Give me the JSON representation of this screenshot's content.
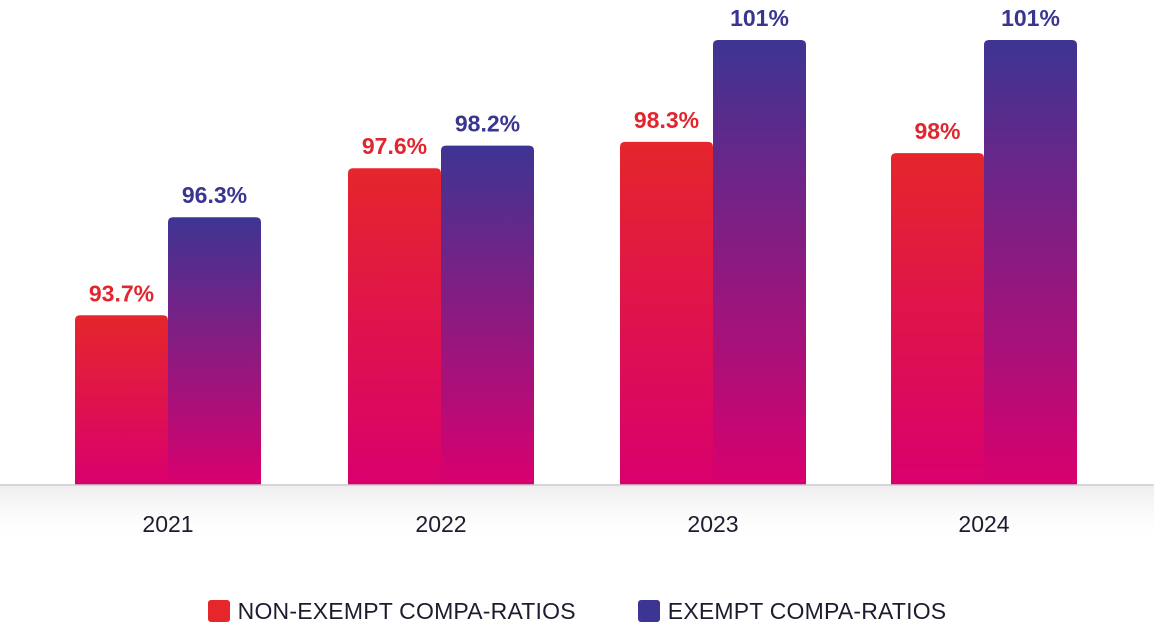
{
  "colors": {
    "non_exempt_label": "#e0262e",
    "exempt_label": "#3b3592",
    "non_exempt_top": "#e5262b",
    "exempt_top": "#3d3593",
    "bar_bottom": "#d9006e",
    "axis_text": "#1c1c2e",
    "baseline": "#c9c9cc"
  },
  "chart_data": {
    "type": "bar",
    "categories": [
      "2021",
      "2022",
      "2023",
      "2024"
    ],
    "series": [
      {
        "name": "NON-EXEMPT COMPA-RATIOS",
        "values": [
          93.7,
          97.6,
          98.3,
          98
        ],
        "labels": [
          "93.7%",
          "97.6%",
          "98.3%",
          "98%"
        ],
        "color": "#e5262b"
      },
      {
        "name": "EXEMPT COMPA-RATIOS",
        "values": [
          96.3,
          98.2,
          101,
          101
        ],
        "labels": [
          "96.3%",
          "98.2%",
          "101%",
          "101%"
        ],
        "color": "#3d3593"
      }
    ],
    "ylim": [
      89.2,
      101
    ],
    "grid": false,
    "legend_position": "bottom-center"
  }
}
